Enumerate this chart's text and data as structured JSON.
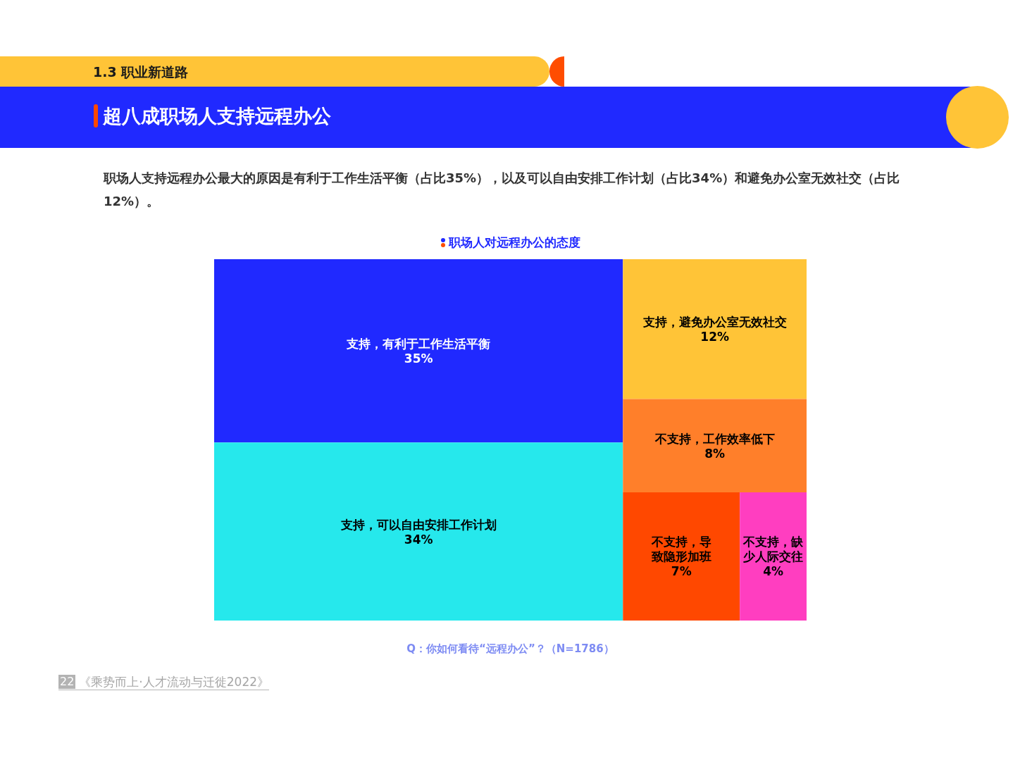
{
  "chart_data": {
    "type": "other",
    "title": "职场人对远程办公的态度",
    "categories": [
      "支持，有利于工作生活平衡",
      "支持，可以自由安排工作计划",
      "支持，避免办公室无效社交",
      "不支持，工作效率低下",
      "不支持，导致隐形加班",
      "不支持，缺少人际交往"
    ],
    "values": [
      35,
      34,
      12,
      8,
      7,
      4
    ],
    "value_labels": [
      "35%",
      "34%",
      "12%",
      "8%",
      "7%",
      "4%"
    ],
    "colors": [
      "#2029ff",
      "#26e8ec",
      "#ffc437",
      "#ff7f2a",
      "#ff4800",
      "#ff3ec0"
    ],
    "annotations": [
      "1.3 职业新道路",
      "超八成职场人支持远程办公",
      "职场人支持远程办公最大的原因是有利于工作生活平衡（占比35%），以及可以自由安排工作计划（占比34%）和避免办公室无效社交（占比12%）。",
      "Q：你如何看待“远程办公”？（N=1786）",
      "22",
      "《乘势而上·人才流动与迁徙2022》"
    ]
  }
}
